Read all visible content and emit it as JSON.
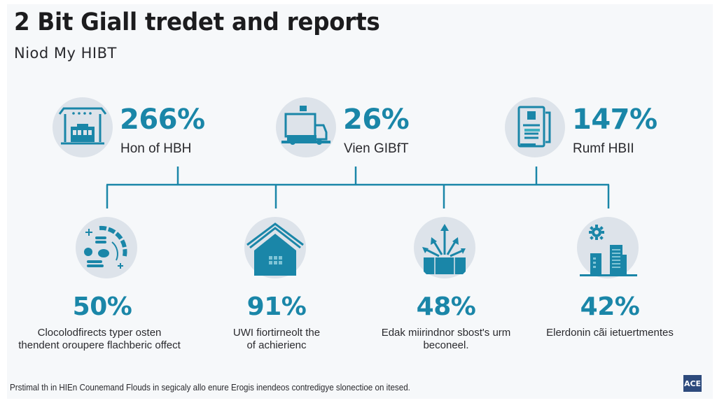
{
  "header": {
    "title": "2 Bit Giall tredet and reports",
    "subtitle": "Niod My HIBT"
  },
  "colors": {
    "accent": "#1a86a8",
    "icon_circle": "#dde3ea",
    "text": "#2a2a2e",
    "background": "#f6f8fa",
    "badge": "#2d4a7c"
  },
  "top_stats": [
    {
      "value": "266%",
      "label": "Hon of HBH",
      "icon": "storefront-icon"
    },
    {
      "value": "26%",
      "label": "Vien GIBfT",
      "icon": "delivery-truck-icon"
    },
    {
      "value": "147%",
      "label": "Rumf HBII",
      "icon": "document-report-icon"
    }
  ],
  "bottom_stats": [
    {
      "value": "50%",
      "desc_line1": "Clocolodfirects typer osten",
      "desc_line2": "thendent oroupere flachberic offect",
      "icon": "analytics-gauge-icon"
    },
    {
      "value": "91%",
      "desc_line1": "UWI fiortirneolt the",
      "desc_line2": "of achierienc",
      "icon": "house-icon"
    },
    {
      "value": "48%",
      "desc_line1": "Edak miirindnor sbost's urm",
      "desc_line2": "beconeel.",
      "icon": "growth-arrows-icon"
    },
    {
      "value": "42%",
      "desc_line1": "Elerdonin cãi ietuertmentes",
      "desc_line2": "",
      "icon": "city-buildings-gear-icon"
    }
  ],
  "footer": {
    "note": "Prstimal th in HIEn Counemand Flouds in segicaly allo enure Erogis inendeos contredigye slonectioe on itesed.",
    "badge_text": "ACE"
  }
}
